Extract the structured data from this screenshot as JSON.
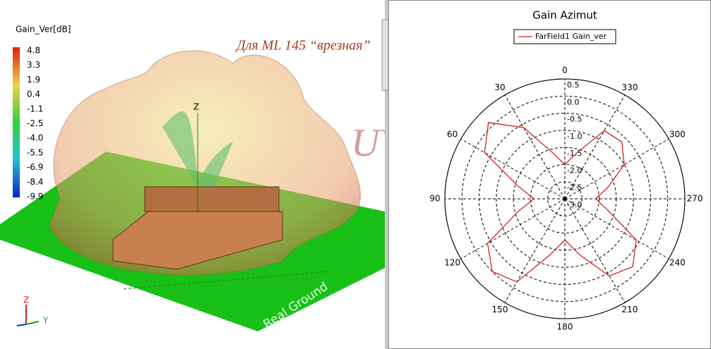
{
  "left_panel": {
    "colorbar_title": "Gain_Ver[dB]",
    "colorbar_labels": [
      "4.8",
      "3.3",
      "1.9",
      "0.4",
      "-1.1",
      "-2.5",
      "-4.0",
      "-5.5",
      "-6.9",
      "-8.4",
      "-9.9"
    ],
    "annotation": "Для ML 145 “врезная”",
    "watermark": "UVE",
    "ground_label": "Real Ground",
    "axis_label": "Z",
    "triad": [
      "Z",
      "Y"
    ]
  },
  "chart_data": {
    "type": "polar",
    "title": "Gain Azimut",
    "theta": [
      0,
      15,
      30,
      45,
      60,
      75,
      90,
      105,
      120,
      135,
      150,
      165,
      180,
      195,
      210,
      225,
      240,
      255,
      270,
      285,
      300,
      315,
      330,
      345
    ],
    "series": [
      {
        "name": "FarField1 Gain_ver",
        "color": "#d42020",
        "values": [
          -2.0,
          -1.6,
          -0.6,
          0.15,
          -0.3,
          -1.6,
          -2.1,
          -1.6,
          -0.4,
          0.0,
          -0.2,
          -1.3,
          -1.8,
          -1.3,
          -0.4,
          -0.2,
          -0.6,
          -1.7,
          -2.1,
          -1.7,
          -1.0,
          -0.65,
          -0.7,
          -1.6
        ]
      }
    ],
    "rlim": [
      -3,
      0.5
    ],
    "rticks": [
      {
        "value": -3,
        "label": "-3.0"
      },
      -2.5,
      {
        "value": -2,
        "label": "-2.0"
      },
      -1.5,
      {
        "value": -1,
        "label": "-1.0"
      },
      -0.5,
      {
        "value": 0,
        "label": "0.0"
      },
      0.5
    ],
    "thetaticks": [
      0,
      30,
      60,
      90,
      120,
      150,
      180,
      210,
      240,
      270,
      300,
      330
    ],
    "direction": "counterclockwise",
    "zero_location": "top",
    "grid": true,
    "legend": "top"
  }
}
